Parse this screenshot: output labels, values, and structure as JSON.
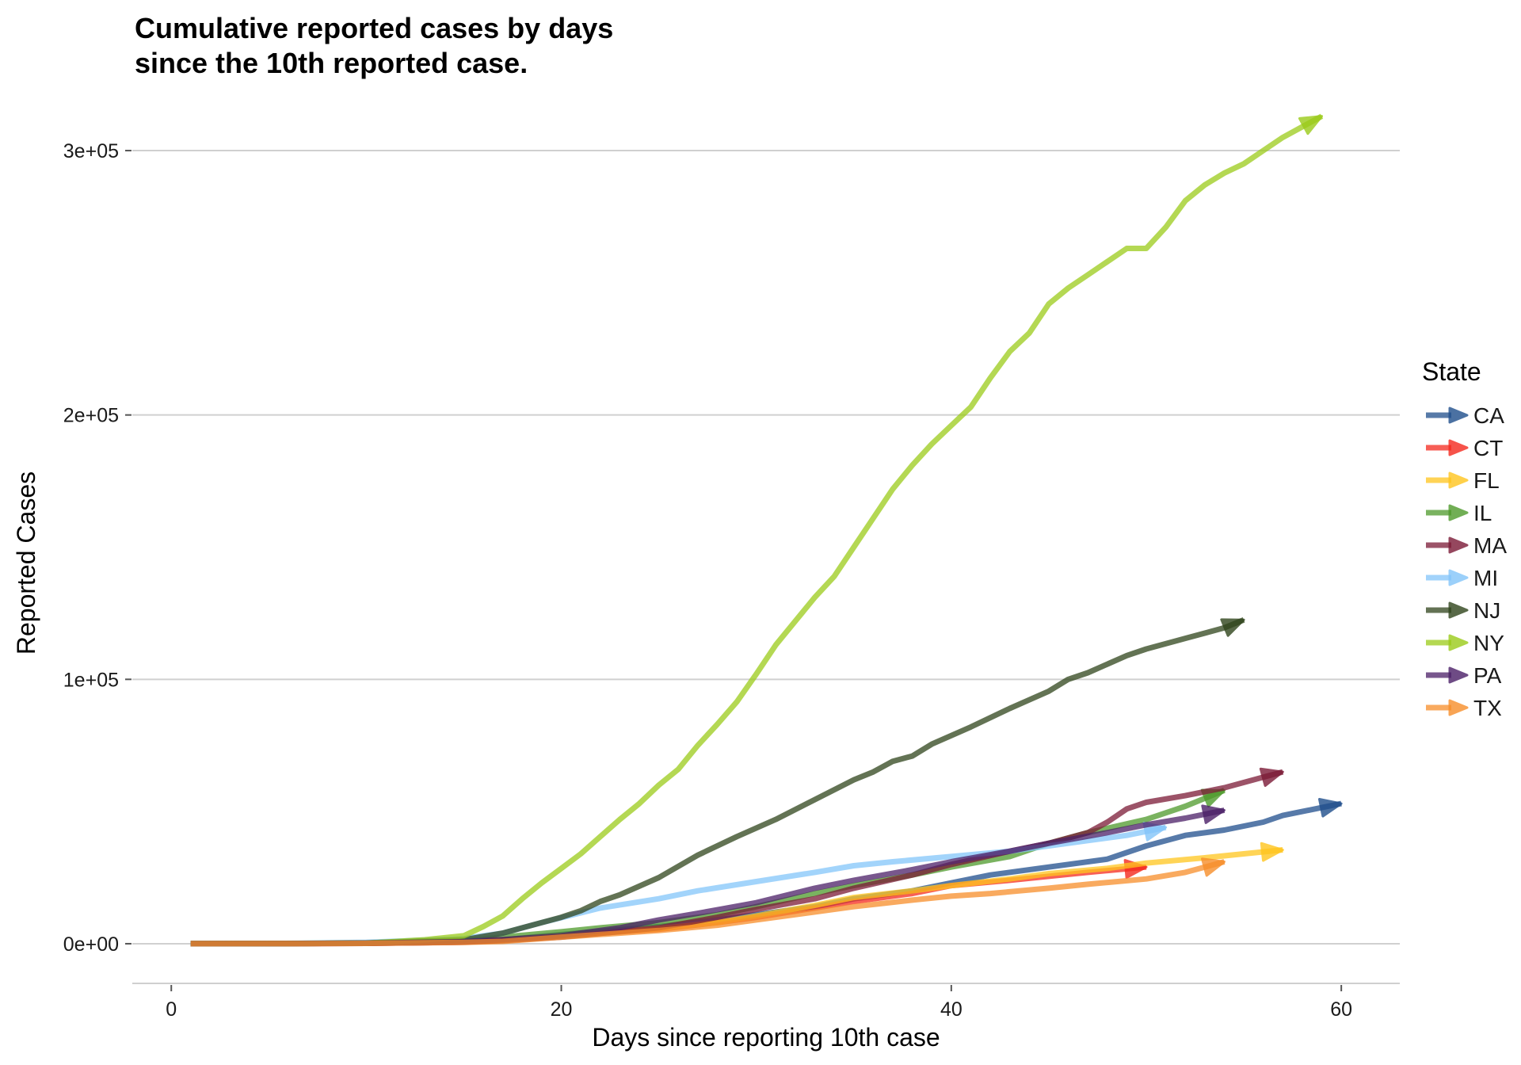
{
  "chart_data": {
    "type": "line",
    "title": "Cumulative reported cases by days\nsince the 10th reported case.",
    "xlabel": "Days since reporting 10th case",
    "ylabel": "Reported Cases",
    "xlim": [
      -2,
      63
    ],
    "ylim": [
      -15000,
      315000
    ],
    "x_ticks": [
      0,
      20,
      40,
      60
    ],
    "x_tick_labels": [
      "0",
      "20",
      "40",
      "60"
    ],
    "y_ticks": [
      0,
      100000,
      200000,
      300000
    ],
    "y_tick_labels": [
      "0e+00",
      "1e+05",
      "2e+05",
      "3e+05"
    ],
    "grid": "horizontal major",
    "legend": {
      "title": "State",
      "position": "right"
    },
    "series": [
      {
        "name": "CA",
        "color": "#1F4E8C",
        "x": [
          1,
          5,
          10,
          15,
          17,
          20,
          25,
          28,
          30,
          33,
          35,
          38,
          40,
          42,
          45,
          48,
          50,
          52,
          54,
          56,
          57,
          58,
          60
        ],
        "y": [
          10,
          40,
          200,
          700,
          1500,
          3500,
          6500,
          9000,
          11000,
          14000,
          17000,
          20000,
          23000,
          26000,
          29000,
          32000,
          37000,
          41000,
          43000,
          46000,
          48500,
          50000,
          53000
        ]
      },
      {
        "name": "CT",
        "color": "#F5291E",
        "x": [
          1,
          5,
          10,
          15,
          18,
          20,
          25,
          28,
          30,
          33,
          35,
          38,
          40,
          43,
          45,
          47,
          50
        ],
        "y": [
          10,
          30,
          150,
          600,
          1800,
          3000,
          5500,
          8000,
          10000,
          13500,
          16000,
          19000,
          22000,
          24000,
          25500,
          27000,
          29000
        ]
      },
      {
        "name": "FL",
        "color": "#FFC51D",
        "x": [
          1,
          5,
          10,
          15,
          17,
          20,
          25,
          28,
          30,
          33,
          35,
          38,
          40,
          43,
          45,
          48,
          50,
          53,
          55,
          57
        ],
        "y": [
          10,
          40,
          200,
          800,
          1500,
          3000,
          5700,
          8000,
          10500,
          14500,
          17500,
          20000,
          22000,
          24500,
          26500,
          28500,
          30500,
          32500,
          34000,
          35500
        ]
      },
      {
        "name": "IL",
        "color": "#4E9A2B",
        "x": [
          1,
          5,
          10,
          15,
          17,
          20,
          22,
          25,
          28,
          30,
          33,
          35,
          38,
          40,
          43,
          45,
          47,
          50,
          52,
          54
        ],
        "y": [
          10,
          40,
          250,
          1200,
          2500,
          4500,
          6000,
          8000,
          11000,
          14000,
          19000,
          22000,
          26000,
          29000,
          33000,
          38000,
          42000,
          47000,
          52000,
          58000
        ]
      },
      {
        "name": "MA",
        "color": "#7B1A36",
        "x": [
          1,
          5,
          10,
          15,
          17,
          20,
          25,
          28,
          30,
          33,
          35,
          38,
          40,
          43,
          45,
          47,
          48,
          49,
          50,
          52,
          54,
          56,
          57
        ],
        "y": [
          10,
          30,
          150,
          600,
          1200,
          2500,
          6000,
          10000,
          13000,
          17000,
          21000,
          26000,
          30000,
          35000,
          38000,
          42000,
          46000,
          51000,
          53500,
          56000,
          59000,
          63000,
          65000
        ]
      },
      {
        "name": "MI",
        "color": "#83C5FA",
        "x": [
          1,
          5,
          10,
          15,
          17,
          19,
          22,
          25,
          27,
          30,
          33,
          35,
          37,
          40,
          43,
          45,
          47,
          49,
          51
        ],
        "y": [
          10,
          40,
          500,
          2000,
          4000,
          8000,
          13500,
          17000,
          20000,
          23500,
          27000,
          29500,
          31000,
          33000,
          35000,
          37000,
          39000,
          41000,
          44000
        ]
      },
      {
        "name": "NJ",
        "color": "#2F441B",
        "x": [
          1,
          5,
          10,
          15,
          17,
          18,
          20,
          21,
          22,
          23,
          25,
          27,
          29,
          31,
          33,
          35,
          36,
          37,
          38,
          39,
          41,
          43,
          45,
          46,
          47,
          49,
          50,
          52,
          54,
          55
        ],
        "y": [
          10,
          50,
          300,
          1500,
          4000,
          6000,
          10000,
          12500,
          16000,
          18500,
          25000,
          33500,
          40500,
          47000,
          54500,
          62000,
          65000,
          69000,
          71000,
          75500,
          82000,
          89000,
          95500,
          100000,
          102500,
          109000,
          111500,
          115500,
          119500,
          122500
        ]
      },
      {
        "name": "NY",
        "color": "#9BCB19",
        "x": [
          1,
          5,
          10,
          13,
          15,
          16,
          17,
          18,
          19,
          20,
          21,
          22,
          23,
          24,
          25,
          26,
          27,
          28,
          29,
          30,
          31,
          32,
          33,
          34,
          35,
          36,
          37,
          38,
          39,
          40,
          41,
          42,
          43,
          44,
          45,
          46,
          47,
          48,
          49,
          50,
          51,
          52,
          53,
          54,
          55,
          56,
          57,
          58,
          59
        ],
        "y": [
          10,
          50,
          200,
          1500,
          3000,
          6500,
          10500,
          17000,
          23000,
          28500,
          34000,
          40500,
          47000,
          53000,
          60000,
          66000,
          75000,
          83000,
          91500,
          102000,
          113000,
          122000,
          131000,
          139000,
          150000,
          161000,
          172000,
          181000,
          189000,
          196000,
          203000,
          214000,
          224000,
          231000,
          242000,
          248000,
          253000,
          258000,
          263000,
          263000,
          271000,
          281000,
          287000,
          291500,
          295000,
          300000,
          305000,
          309000,
          313000
        ]
      },
      {
        "name": "PA",
        "color": "#4B1F67",
        "x": [
          1,
          5,
          10,
          15,
          17,
          20,
          23,
          25,
          27,
          30,
          33,
          35,
          38,
          40,
          43,
          45,
          48,
          50,
          52,
          54
        ],
        "y": [
          10,
          40,
          200,
          800,
          1600,
          3000,
          6000,
          9000,
          11500,
          15500,
          21000,
          24000,
          28000,
          31000,
          35000,
          38000,
          42000,
          45000,
          47500,
          50500
        ]
      },
      {
        "name": "TX",
        "color": "#F78E2A",
        "x": [
          1,
          5,
          10,
          15,
          17,
          20,
          25,
          28,
          30,
          33,
          35,
          38,
          40,
          42,
          45,
          47,
          50,
          52,
          54
        ],
        "y": [
          10,
          40,
          150,
          500,
          900,
          2500,
          5000,
          7000,
          9000,
          12000,
          14000,
          16500,
          18000,
          19000,
          21000,
          22500,
          24500,
          27000,
          31000
        ]
      }
    ]
  }
}
